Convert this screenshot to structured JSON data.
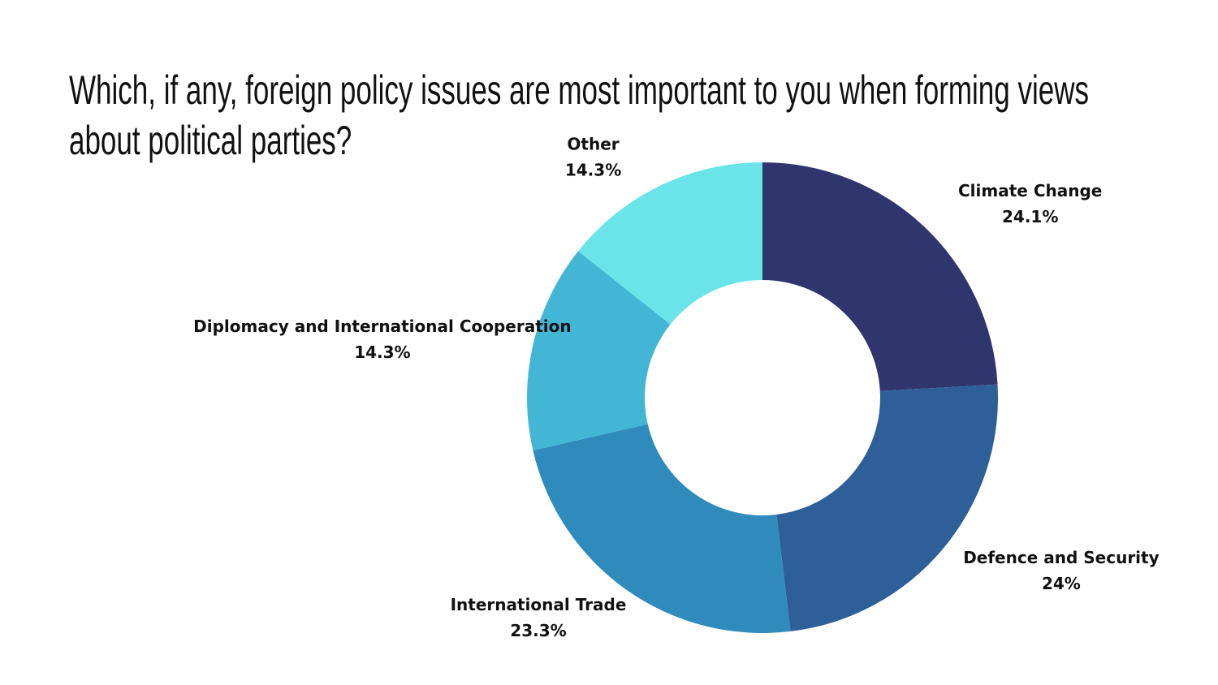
{
  "chart_data": {
    "type": "donut",
    "title": "Which, if any, foreign policy issues are most important to you when forming views about political parties?",
    "categories": [
      "Climate Change",
      "Defence and Security",
      "International Trade",
      "Diplomacy and International Cooperation",
      "Other"
    ],
    "values": [
      24.1,
      24,
      23.3,
      14.3,
      14.3
    ],
    "value_labels": [
      "24.1%",
      "24%",
      "23.3%",
      "14.3%",
      "14.3%"
    ],
    "colors": [
      "#31356e",
      "#2e5f99",
      "#2e8bbb",
      "#43b6d5",
      "#6ae4e8"
    ]
  }
}
